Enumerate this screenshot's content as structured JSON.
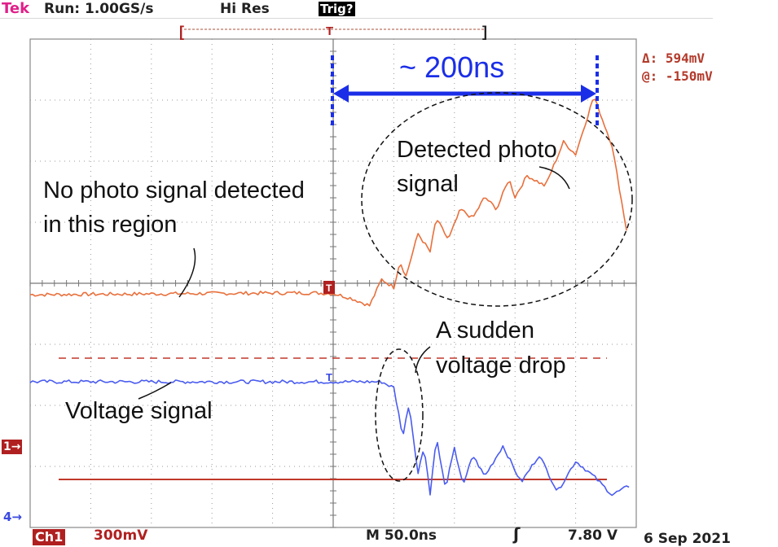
{
  "header": {
    "brand": "Tek",
    "run_status": "Run: 1.00GS/s",
    "acq_mode": "Hi Res",
    "trig_status": "Trig?"
  },
  "cursor_readout": {
    "delta": "Δ: 594mV",
    "at": "@: -150mV"
  },
  "channel_markers": {
    "ch1": "1→",
    "ch4": "4→",
    "trigger": "T"
  },
  "footer": {
    "ch1_label": "Ch1",
    "ch1_scale": "300mV",
    "timebase": "M 50.0ns",
    "trigger_slope_icon": "rising-edge-icon",
    "trigger_level": "7.80 V",
    "date": "6 Sep 2021"
  },
  "colors": {
    "photo_trace": "#e8703c",
    "voltage_trace": "#4a5cf0",
    "annotation_blue": "#1a2ee8",
    "cursor_line": "#c0392b",
    "grid": "#9a9a9a"
  },
  "annotations": {
    "span_label": "~ 200ns",
    "photo_label_line1": "Detected photo",
    "photo_label_line2": "signal",
    "no_signal_line1": "No photo signal detected",
    "no_signal_line2": "in this region",
    "drop_line1": "A sudden",
    "drop_line2": "voltage drop",
    "voltage_label": "Voltage signal"
  },
  "chart_data": {
    "type": "line",
    "grid": true,
    "x": {
      "divisions": 10,
      "unit_per_div": "50.0ns",
      "trigger_div": 5
    },
    "y": {
      "divisions": 8
    },
    "series": [
      {
        "key": "photo",
        "points": [
          [
            0,
            0.0
          ],
          [
            3.0,
            0.02
          ],
          [
            4.6,
            0.03
          ],
          [
            5.0,
            0.02
          ],
          [
            5.3,
            -0.06
          ],
          [
            5.6,
            -0.18
          ],
          [
            5.8,
            0.25
          ],
          [
            6.0,
            0.12
          ],
          [
            6.1,
            0.55
          ],
          [
            6.2,
            0.3
          ],
          [
            6.4,
            1.0
          ],
          [
            6.6,
            0.7
          ],
          [
            6.7,
            1.25
          ],
          [
            6.9,
            0.9
          ],
          [
            7.1,
            1.4
          ],
          [
            7.3,
            1.25
          ],
          [
            7.5,
            1.6
          ],
          [
            7.7,
            1.4
          ],
          [
            7.9,
            1.9
          ],
          [
            8.0,
            1.6
          ],
          [
            8.2,
            1.95
          ],
          [
            8.5,
            1.78
          ],
          [
            8.8,
            2.5
          ],
          [
            9.0,
            2.3
          ],
          [
            9.3,
            3.25
          ],
          [
            9.6,
            2.45
          ],
          [
            9.85,
            1.0
          ]
        ]
      },
      {
        "key": "voltage",
        "points": [
          [
            0,
            0.0
          ],
          [
            4.0,
            0.0
          ],
          [
            5.8,
            0.0
          ],
          [
            6.0,
            -0.1
          ],
          [
            6.15,
            -0.9
          ],
          [
            6.25,
            -0.35
          ],
          [
            6.4,
            -1.5
          ],
          [
            6.5,
            -1.05
          ],
          [
            6.6,
            -1.85
          ],
          [
            6.7,
            -0.9
          ],
          [
            6.85,
            -1.75
          ],
          [
            7.0,
            -1.1
          ],
          [
            7.15,
            -1.7
          ],
          [
            7.3,
            -1.2
          ],
          [
            7.5,
            -1.55
          ],
          [
            7.8,
            -1.05
          ],
          [
            8.1,
            -1.65
          ],
          [
            8.4,
            -1.2
          ],
          [
            8.7,
            -1.8
          ],
          [
            9.0,
            -1.3
          ],
          [
            9.3,
            -1.55
          ],
          [
            9.6,
            -1.85
          ],
          [
            9.9,
            -1.7
          ]
        ]
      }
    ],
    "cursors": {
      "delta": "594mV",
      "at": "-150mV"
    }
  }
}
